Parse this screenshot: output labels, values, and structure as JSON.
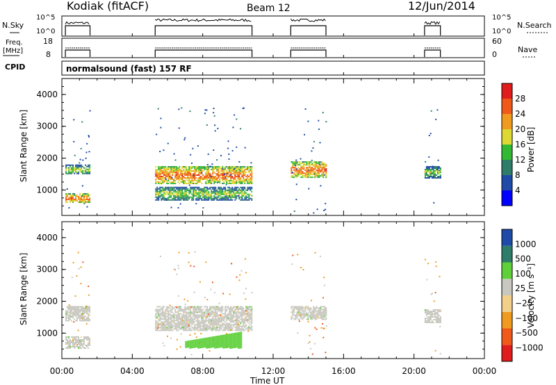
{
  "header": {
    "station": "Kodiak (fitACF)",
    "beam": "Beam 12",
    "date": "12/Jun/2014"
  },
  "status_panels": {
    "nsky_label": "N.Sky",
    "nsky_ticks": [
      "10^5",
      "10^0"
    ],
    "nsearch_label": "N.Search",
    "nsearch_ticks": [
      "10^5",
      "10^0"
    ],
    "freq_label_1": "Freq.",
    "freq_label_2": "[MHz]",
    "freq_ticks": [
      "18",
      "8"
    ],
    "nave_label": "Nave",
    "nave_ticks": [
      "60",
      "0"
    ],
    "cpid_label": "CPID",
    "cpid_text": "normalsound (fast) 157 RF"
  },
  "colors": {
    "power_scale": [
      "#0000ff",
      "#1f4aa8",
      "#2e7d6b",
      "#33b833",
      "#ddd833",
      "#f09b20",
      "#ef5a1a",
      "#e01c1c"
    ],
    "velocity_scale": [
      "#e01c1c",
      "#ef5a1a",
      "#f09b20",
      "#f2d08a",
      "#c8c8c0",
      "#5fd03a",
      "#2e7d6b",
      "#1f4aa8"
    ],
    "gray_scatter": "#c8c8c0"
  },
  "chart_data": [
    {
      "type": "heatmap",
      "name": "power",
      "ylabel": "Slant Range [km]",
      "ylim": [
        200,
        4500
      ],
      "yticks": [
        "4000",
        "3000",
        "2000",
        "1000"
      ],
      "xlim_hours": [
        0,
        24
      ],
      "colorbar_label": "Power [dB]",
      "colorbar_ticks": [
        "28",
        "24",
        "20",
        "16",
        "12",
        "8",
        "4"
      ],
      "observation_blocks_hours": [
        [
          0.2,
          1.6
        ],
        [
          5.3,
          10.8
        ],
        [
          13.0,
          15.0
        ],
        [
          20.6,
          21.5
        ]
      ],
      "dense_bands_km": [
        {
          "start": 0.2,
          "end": 1.6,
          "range": [
            1500,
            1800
          ],
          "level": 4
        },
        {
          "start": 0.2,
          "end": 1.6,
          "range": [
            600,
            900
          ],
          "level": 6
        },
        {
          "start": 5.3,
          "end": 10.8,
          "range": [
            1200,
            1750
          ],
          "level": 6
        },
        {
          "start": 5.3,
          "end": 10.8,
          "range": [
            700,
            1100
          ],
          "level": 4
        },
        {
          "start": 13.0,
          "end": 15.0,
          "range": [
            1400,
            1900
          ],
          "level": 6
        },
        {
          "start": 20.6,
          "end": 21.5,
          "range": [
            1400,
            1750
          ],
          "level": 4
        }
      ]
    },
    {
      "type": "heatmap",
      "name": "velocity",
      "ylabel": "Slant Range [km]",
      "ylim": [
        200,
        4500
      ],
      "yticks": [
        "4000",
        "3000",
        "2000",
        "1000"
      ],
      "xlim_hours": [
        0,
        24
      ],
      "colorbar_label": "Velocity [m s⁻¹]",
      "colorbar_ticks": [
        "1000",
        "500",
        "100",
        "25",
        "−25",
        "−100",
        "−500",
        "−1000"
      ],
      "ground_scatter_bands_km": [
        {
          "start": 0.2,
          "end": 1.6,
          "range": [
            1400,
            1850
          ]
        },
        {
          "start": 0.2,
          "end": 1.6,
          "range": [
            550,
            900
          ]
        },
        {
          "start": 5.3,
          "end": 10.8,
          "range": [
            1100,
            1850
          ]
        },
        {
          "start": 13.0,
          "end": 15.0,
          "range": [
            1450,
            1850
          ]
        },
        {
          "start": 20.6,
          "end": 21.5,
          "range": [
            1350,
            1750
          ]
        }
      ],
      "positive_velocity_patch": {
        "start": 7.0,
        "end": 10.2,
        "range": [
          550,
          1050
        ]
      }
    }
  ],
  "xaxis": {
    "ticks": [
      "00:00",
      "04:00",
      "08:00",
      "12:00",
      "16:00",
      "20:00",
      "00:00"
    ],
    "label": "Time UT"
  }
}
